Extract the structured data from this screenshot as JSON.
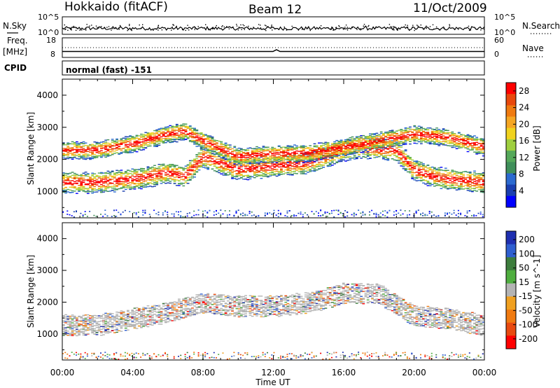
{
  "header": {
    "station": "Hokkaido (fitACF)",
    "beam": "Beam 12",
    "date": "11/Oct/2009"
  },
  "noise_panel": {
    "left_label": "N.Sky",
    "left_ticks": [
      "10^5",
      "10^0"
    ],
    "right_ticks": [
      "10^5",
      "10^0"
    ],
    "right_label": "N.Search"
  },
  "freq_panel": {
    "left_label_1": "Freq.",
    "left_label_2": "[MHz]",
    "left_ticks": [
      "18",
      "8"
    ],
    "right_ticks": [
      "60",
      "0"
    ],
    "right_label": "Nave"
  },
  "cpid": {
    "label": "CPID",
    "value": "normal (fast) -151"
  },
  "colors": {
    "power": [
      "#0000ff",
      "#1a3fb0",
      "#2c6ad0",
      "#3f8f5a",
      "#55a85a",
      "#9fcf3f",
      "#f0d21e",
      "#f5a623",
      "#ef7a10",
      "#e8480c",
      "#ff0000"
    ],
    "velocity": [
      "#1f2fb0",
      "#2f5fd0",
      "#3d7d3d",
      "#4fae3f",
      "#b4b4b4",
      "#f0a020",
      "#f07a10",
      "#e84a10",
      "#ff0000"
    ]
  },
  "chart_data": [
    {
      "type": "heatmap",
      "title": "",
      "xlabel": "Time UT",
      "ylabel": "Slant Range [km]",
      "x_ticks": [
        "00:00",
        "04:00",
        "08:00",
        "12:00",
        "16:00",
        "20:00",
        "00:00"
      ],
      "ylim": [
        180,
        4500
      ],
      "y_ticks": [
        1000,
        2000,
        3000,
        4000
      ],
      "colorbar": {
        "label": "Power [dB]",
        "ticks": [
          4,
          8,
          12,
          16,
          20,
          24,
          28
        ],
        "range": [
          0,
          30
        ]
      },
      "series": [
        {
          "name": "main_echo_band_center_km",
          "x_hours": [
            0,
            2,
            4,
            6,
            7,
            8,
            9,
            10,
            12,
            14,
            16,
            17,
            19,
            20,
            21,
            22,
            24
          ],
          "values": [
            1300,
            1300,
            1400,
            1600,
            1500,
            2100,
            1900,
            1700,
            1800,
            1900,
            2300,
            2400,
            2300,
            1700,
            1500,
            1400,
            1300
          ]
        },
        {
          "name": "upper_echo_band_center_km",
          "x_hours": [
            0,
            2,
            4,
            6,
            7,
            8,
            10,
            12,
            14,
            16,
            18,
            20,
            22,
            24
          ],
          "values": [
            2300,
            2300,
            2500,
            2800,
            2900,
            2600,
            2100,
            2200,
            2200,
            2400,
            2600,
            2800,
            2700,
            2400
          ]
        }
      ]
    },
    {
      "type": "heatmap",
      "title": "",
      "xlabel": "Time UT",
      "ylabel": "Slant Range [km]",
      "x_ticks": [
        "00:00",
        "04:00",
        "08:00",
        "12:00",
        "16:00",
        "20:00",
        "00:00"
      ],
      "ylim": [
        180,
        4500
      ],
      "y_ticks": [
        1000,
        2000,
        3000,
        4000
      ],
      "colorbar": {
        "label": "Velocity [m s^-1]",
        "ticks": [
          200,
          100,
          50,
          15,
          -15,
          -50,
          -100,
          -200
        ],
        "range": [
          -250,
          250
        ]
      },
      "series": [
        {
          "name": "ground_scatter_band_center_km",
          "x_hours": [
            0,
            2,
            4,
            6,
            8,
            10,
            12,
            14,
            16,
            18,
            20,
            22,
            24
          ],
          "values": [
            1300,
            1300,
            1500,
            1700,
            2000,
            1900,
            1900,
            2000,
            2300,
            2300,
            1600,
            1500,
            1300
          ]
        }
      ]
    }
  ]
}
